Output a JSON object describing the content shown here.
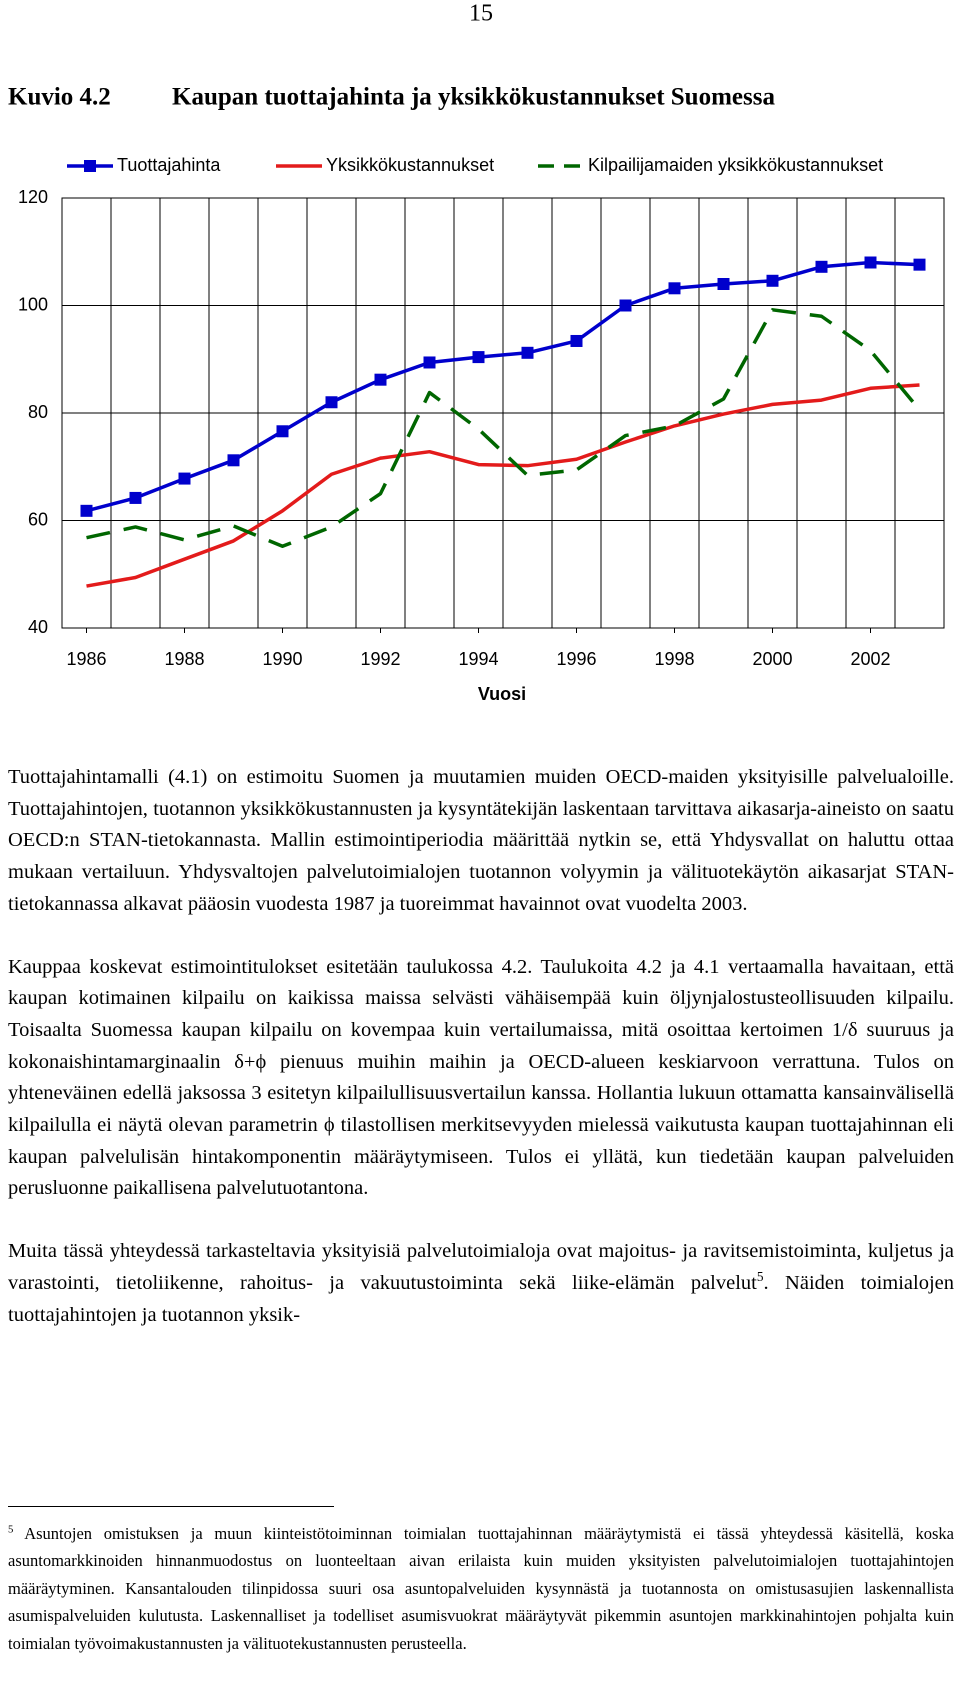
{
  "page_number": "15",
  "figure": {
    "label": "Kuvio 4.2",
    "title": "Kaupan tuottajahinta ja yksikkökustannukset Suomessa"
  },
  "chart_data": {
    "type": "line",
    "x_label": "Vuosi",
    "x": [
      1986,
      1987,
      1988,
      1989,
      1990,
      1991,
      1992,
      1993,
      1994,
      1995,
      1996,
      1997,
      1998,
      1999,
      2000,
      2001,
      2002,
      2003
    ],
    "xlim": [
      1985.5,
      2003.5
    ],
    "xticks": [
      1986,
      1988,
      1990,
      1992,
      1994,
      1996,
      1998,
      2000,
      2002
    ],
    "ylim": [
      40,
      120
    ],
    "yticks": [
      40,
      60,
      80,
      100,
      120
    ],
    "grid": true,
    "legend": "top",
    "series": [
      {
        "name": "Tuottajahinta",
        "color": "#0000cc",
        "marker": "square",
        "dashed": false,
        "values": [
          61.8,
          64.2,
          67.8,
          71.2,
          76.6,
          82,
          86.2,
          89.4,
          90.4,
          91.2,
          93.4,
          100,
          103.2,
          104,
          104.6,
          107.2,
          108,
          107.6
        ]
      },
      {
        "name": "Yksikkökustannukset",
        "color": "#e31b1b",
        "marker": "none",
        "dashed": false,
        "values": [
          47.8,
          49.4,
          52.8,
          56.2,
          61.8,
          68.6,
          71.6,
          72.8,
          70.4,
          70.2,
          71.4,
          74.6,
          77.6,
          79.8,
          81.6,
          82.4,
          84.6,
          85.2
        ]
      },
      {
        "name": "Kilpailijamaiden yksikkökustannukset",
        "color": "#006600",
        "marker": "none",
        "dashed": true,
        "values": [
          56.8,
          58.8,
          56.4,
          59,
          55.2,
          58.8,
          65,
          83.8,
          77,
          68.4,
          69.4,
          75.8,
          77.6,
          82.6,
          99.2,
          98,
          91.6,
          80.6
        ]
      }
    ]
  },
  "paragraphs": [
    "Tuottajahintamalli (4.1) on estimoitu Suomen ja muutamien muiden OECD-maiden yksityisille palvelualoille. Tuottajahintojen, tuotannon yksikkökustannusten ja kysyntätekijän laskentaan tarvittava aikasarja-aineisto on saatu OECD:n STAN-tietokannasta. Mallin estimointiperiodia määrittää nytkin se, että Yhdysvallat on haluttu ottaa mukaan vertailuun. Yhdysvaltojen palvelutoimialojen tuotannon volyymin ja välituotekäytön aikasarjat STAN-tietokannassa alkavat pääosin vuodesta 1987 ja tuoreimmat havainnot ovat vuodelta 2003.",
    "Kauppaa koskevat estimointitulokset esitetään taulukossa 4.2. Taulukoita 4.2 ja 4.1 vertaamalla havaitaan, että kaupan kotimainen kilpailu on kaikissa maissa selvästi vähäisempää kuin öljynjalostusteollisuuden kilpailu. Toisaalta Suomessa kaupan kilpailu on kovempaa kuin vertailumaissa, mitä osoittaa kertoimen 1/δ suuruus ja kokonaishintamarginaalin δ+ϕ pienuus muihin maihin ja OECD-alueen keskiarvoon verrattuna. Tulos on yhteneväinen edellä jaksossa 3 esitetyn kilpailullisuusvertailun kanssa. Hollantia lukuun ottamatta kansainvälisellä kilpailulla ei näytä olevan parametrin ϕ tilastollisen merkitsevyyden mielessä vaikutusta kaupan tuottajahinnan eli kaupan palvelulisän hintakomponentin määräytymiseen. Tulos ei yllätä, kun tiedetään kaupan palveluiden perusluonne paikallisena palvelutuotantona."
  ],
  "last_paragraph": {
    "before": "Muita tässä yhteydessä tarkasteltavia yksityisiä palvelutoimialoja ovat majoitus- ja ravitsemistoiminta, kuljetus ja varastointi, tietoliikenne, rahoitus- ja vakuutustoiminta sekä liike-elämän palvelut",
    "ref": "5",
    "after": ". Näiden toimialojen tuottajahintojen ja tuotannon yksik-"
  },
  "footnote": {
    "number": "5",
    "text": "Asuntojen omistuksen ja muun kiinteistötoiminnan toimialan tuottajahinnan määräytymistä ei tässä yhteydessä käsitellä, koska asuntomarkkinoiden hinnanmuodostus on luonteeltaan aivan erilaista kuin muiden yksityisten palvelutoimialojen tuottajahintojen määräytyminen. Kansantalouden tilinpidossa suuri osa asuntopalveluiden kysynnästä ja tuotannosta on omistusasujien laskennallista asumispalveluiden kulutusta. Laskennalliset ja todelliset asumisvuokrat määräytyvät pikemmin asuntojen markkinahintojen pohjalta kuin toimialan työvoimakustannusten ja välituotekustannusten perusteella."
  }
}
